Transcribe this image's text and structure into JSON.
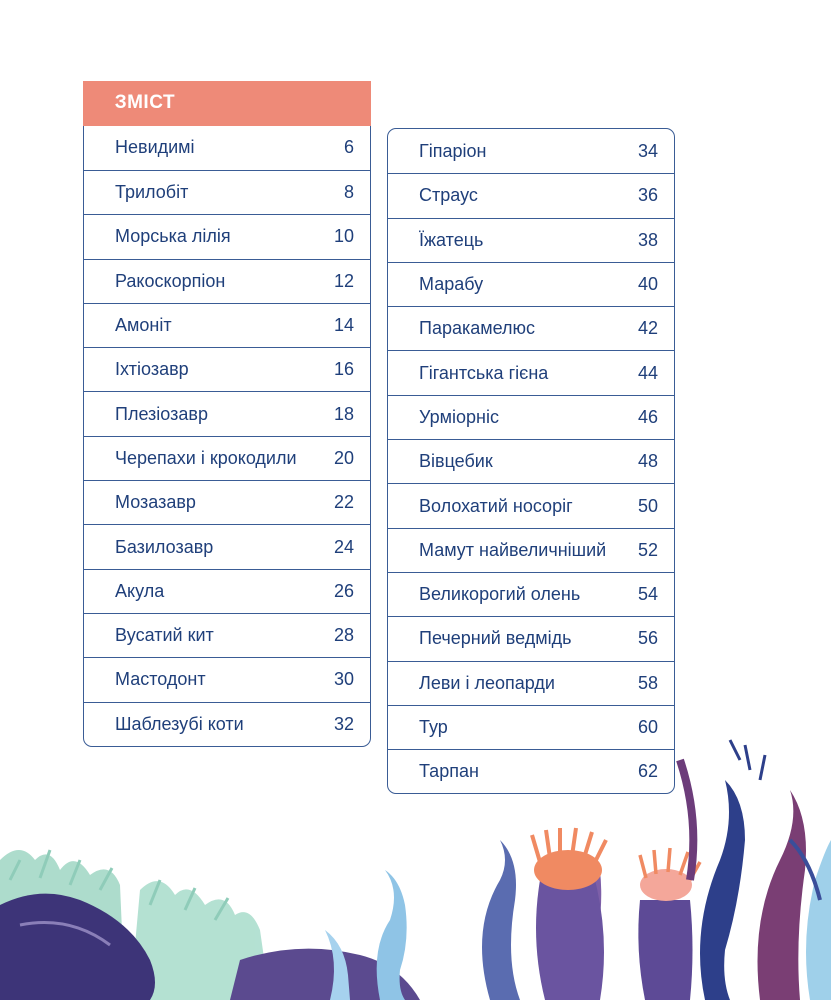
{
  "toc": {
    "title": "ЗМІСТ",
    "left_items": [
      {
        "label": "Невидимі",
        "page": "6"
      },
      {
        "label": "Трилобіт",
        "page": "8"
      },
      {
        "label": "Морська лілія",
        "page": "10"
      },
      {
        "label": "Ракоскорпіон",
        "page": "12"
      },
      {
        "label": "Амоніт",
        "page": "14"
      },
      {
        "label": "Іхтіозавр",
        "page": "16"
      },
      {
        "label": "Плезіозавр",
        "page": "18"
      },
      {
        "label": "Черепахи і крокодили",
        "page": "20"
      },
      {
        "label": "Мозазавр",
        "page": "22"
      },
      {
        "label": "Базилозавр",
        "page": "24"
      },
      {
        "label": "Акула",
        "page": "26"
      },
      {
        "label": "Вусатий кит",
        "page": "28"
      },
      {
        "label": "Мастодонт",
        "page": "30"
      },
      {
        "label": "Шаблезубі коти",
        "page": "32"
      }
    ],
    "right_items": [
      {
        "label": "Гіпаріон",
        "page": "34"
      },
      {
        "label": "Страус",
        "page": "36"
      },
      {
        "label": "Їжатець",
        "page": "38"
      },
      {
        "label": "Марабу",
        "page": "40"
      },
      {
        "label": "Паракамелюс",
        "page": "42"
      },
      {
        "label": "Гігантська гієна",
        "page": "44"
      },
      {
        "label": "Урміорніс",
        "page": "46"
      },
      {
        "label": "Вівцебик",
        "page": "48"
      },
      {
        "label": "Волохатий носоріг",
        "page": "50"
      },
      {
        "label": "Мамут найвеличніший",
        "page": "52"
      },
      {
        "label": "Великорогий олень",
        "page": "54"
      },
      {
        "label": "Печерний ведмідь",
        "page": "56"
      },
      {
        "label": "Леви і леопарди",
        "page": "58"
      },
      {
        "label": "Тур",
        "page": "60"
      },
      {
        "label": "Тарпан",
        "page": "62"
      }
    ]
  },
  "colors": {
    "header_bg": "#ee8a78",
    "text": "#1f3f7a",
    "border": "#3a5c95"
  },
  "illustration": {
    "icons": [
      "seaweed-icon",
      "sea-anemone-icon",
      "rock-icon",
      "coral-icon"
    ]
  }
}
